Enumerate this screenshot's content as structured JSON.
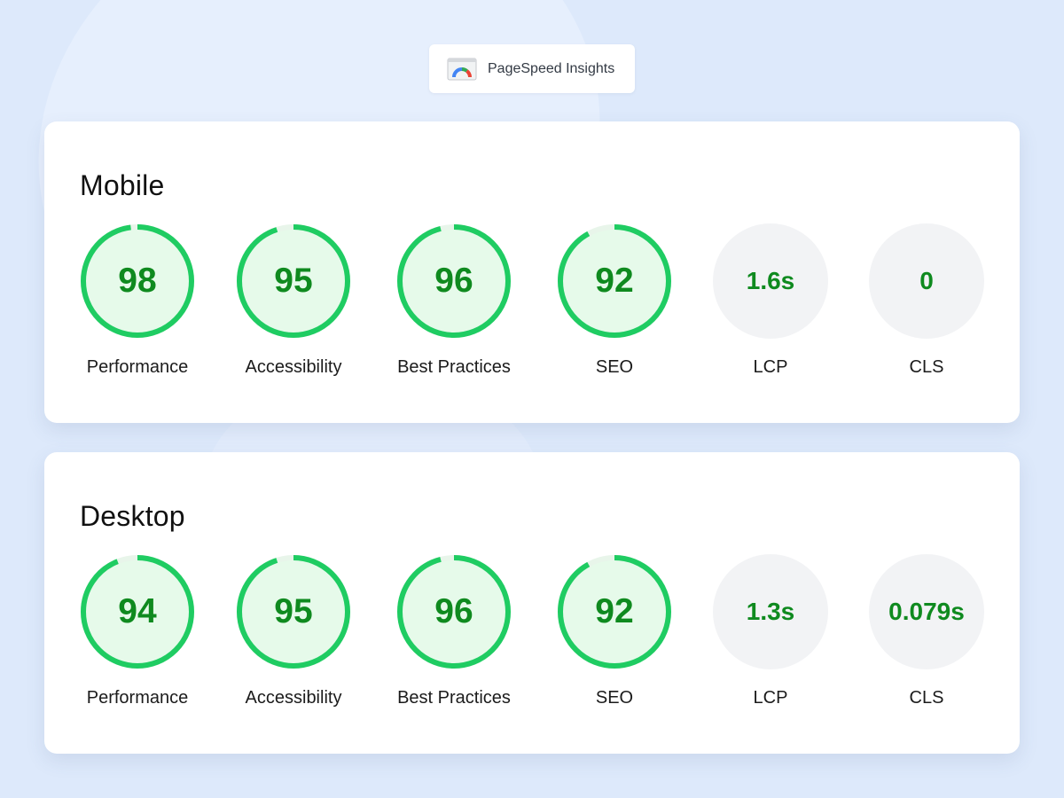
{
  "header": {
    "logo_icon": "pagespeed-gauge-icon",
    "title": "PageSpeed Insights"
  },
  "colors": {
    "good_ring": "#1fcc62",
    "good_fill": "#e6faea",
    "good_text": "#0f8a1f",
    "remaining_ring": "#e8f5ea",
    "neutral_fill": "#f2f3f5"
  },
  "sections": [
    {
      "title": "Mobile",
      "scores": [
        {
          "label": "Performance",
          "value": "98",
          "score": 98
        },
        {
          "label": "Accessibility",
          "value": "95",
          "score": 95
        },
        {
          "label": "Best Practices",
          "value": "96",
          "score": 96
        },
        {
          "label": "SEO",
          "value": "92",
          "score": 92
        }
      ],
      "vitals": [
        {
          "label": "LCP",
          "value": "1.6s"
        },
        {
          "label": "CLS",
          "value": "0"
        }
      ]
    },
    {
      "title": "Desktop",
      "scores": [
        {
          "label": "Performance",
          "value": "94",
          "score": 94
        },
        {
          "label": "Accessibility",
          "value": "95",
          "score": 95
        },
        {
          "label": "Best Practices",
          "value": "96",
          "score": 96
        },
        {
          "label": "SEO",
          "value": "92",
          "score": 92
        }
      ],
      "vitals": [
        {
          "label": "LCP",
          "value": "1.3s"
        },
        {
          "label": "CLS",
          "value": "0.079s"
        }
      ]
    }
  ]
}
